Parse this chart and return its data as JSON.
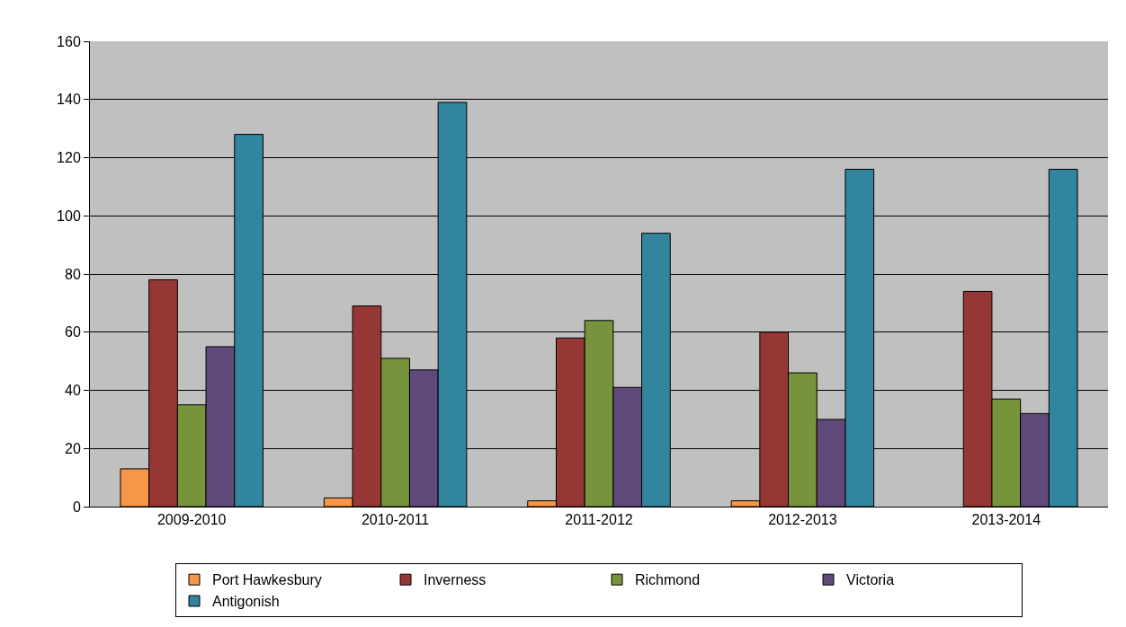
{
  "chart_data": {
    "type": "bar",
    "categories": [
      "2009-2010",
      "2010-2011",
      "2011-2012",
      "2012-2013",
      "2013-2014"
    ],
    "series": [
      {
        "name": "Port Hawkesbury",
        "color": "#f79646",
        "values": [
          13,
          3,
          2,
          2,
          null
        ]
      },
      {
        "name": "Inverness",
        "color": "#953735",
        "values": [
          78,
          69,
          58,
          60,
          74
        ]
      },
      {
        "name": "Richmond",
        "color": "#77933c",
        "values": [
          35,
          51,
          64,
          46,
          37
        ]
      },
      {
        "name": "Victoria",
        "color": "#604a7b",
        "values": [
          55,
          47,
          41,
          30,
          32
        ]
      },
      {
        "name": "Antigonish",
        "color": "#31859c",
        "values": [
          128,
          139,
          94,
          116,
          116
        ]
      }
    ],
    "ylim": [
      0,
      160
    ],
    "yticks": [
      0,
      20,
      40,
      60,
      80,
      100,
      120,
      140,
      160
    ],
    "grid": "y",
    "legend": "bottom"
  }
}
